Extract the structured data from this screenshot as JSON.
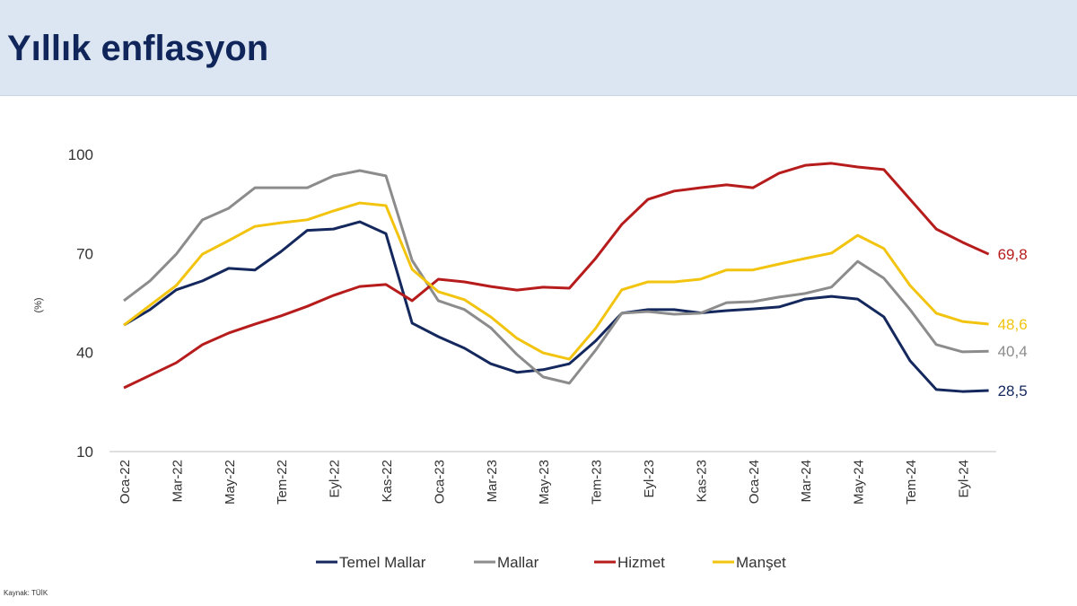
{
  "header": {
    "title": "Yıllık enflasyon"
  },
  "source": "Kaynak: TÜİK",
  "chart_data": {
    "type": "line",
    "title": "",
    "ylabel": "(%)",
    "xlabel": "",
    "ylim": [
      10,
      100
    ],
    "yticks": [
      10,
      40,
      70,
      100
    ],
    "grid": false,
    "legend_position": "bottom",
    "x": [
      "Oca-22",
      "Şub-22",
      "Mar-22",
      "Nis-22",
      "May-22",
      "Haz-22",
      "Tem-22",
      "Ağu-22",
      "Eyl-22",
      "Eki-22",
      "Kas-22",
      "Ara-22",
      "Oca-23",
      "Şub-23",
      "Mar-23",
      "Nis-23",
      "May-23",
      "Haz-23",
      "Tem-23",
      "Ağu-23",
      "Eyl-23",
      "Eki-23",
      "Kas-23",
      "Ara-23",
      "Oca-24",
      "Şub-24",
      "Mar-24",
      "Nis-24",
      "May-24",
      "Haz-24",
      "Tem-24",
      "Ağu-24",
      "Eyl-24",
      "Eki-24"
    ],
    "xtick_labels": [
      "Oca-22",
      "Mar-22",
      "May-22",
      "Tem-22",
      "Eyl-22",
      "Kas-22",
      "Oca-23",
      "Mar-23",
      "May-23",
      "Tem-23",
      "Eyl-23",
      "Kas-23",
      "Oca-24",
      "Mar-24",
      "May-24",
      "Tem-24",
      "Eyl-24"
    ],
    "series": [
      {
        "name": "Temel Mallar",
        "color": "#14285e",
        "end_label": "28,5",
        "values": [
          48.3,
          53,
          59,
          61.7,
          65.5,
          65,
          70.6,
          77,
          77.4,
          79.6,
          76,
          48.9,
          44.8,
          41.3,
          36.6,
          34,
          34.8,
          36.6,
          43.5,
          51.9,
          53,
          53,
          52,
          52.7,
          53.2,
          53.8,
          56.2,
          57,
          56.2,
          50.8,
          37.5,
          28.8,
          28.2,
          28.5
        ]
      },
      {
        "name": "Mallar",
        "color": "#8c8c8c",
        "end_label": "40,4",
        "values": [
          55.7,
          61.7,
          69.8,
          80.2,
          83.7,
          89.9,
          89.9,
          89.9,
          93.5,
          95.1,
          93.5,
          67.9,
          55.7,
          53,
          47.5,
          39.4,
          32.6,
          30.7,
          40.7,
          51.9,
          52.4,
          51.6,
          51.9,
          55.1,
          55.4,
          56.8,
          57.9,
          59.8,
          67.6,
          62.5,
          53,
          42.4,
          40.2,
          40.4
        ]
      },
      {
        "name": "Hizmet",
        "color": "#b71c1c",
        "end_label": "69,8",
        "values": [
          29.3,
          33.1,
          36.9,
          42.4,
          45.9,
          48.6,
          51.1,
          54,
          57.3,
          60,
          60.6,
          55.7,
          62.2,
          61.4,
          60,
          58.9,
          59.8,
          59.5,
          68.5,
          78.8,
          86.4,
          88.9,
          89.9,
          90.8,
          89.9,
          94.3,
          96.7,
          97.3,
          96.2,
          95.4,
          86.4,
          77.4,
          73.4,
          69.8
        ]
      },
      {
        "name": "Manşet",
        "color": "#f2c40f",
        "end_label": "48,6",
        "values": [
          48.3,
          54.3,
          60.3,
          69.8,
          73.9,
          78.2,
          79.3,
          80.2,
          82.9,
          85.3,
          84.5,
          65.2,
          58.4,
          56,
          50.8,
          44.3,
          39.9,
          38,
          47.3,
          59,
          61.4,
          61.4,
          62.2,
          65,
          65,
          66.8,
          68.5,
          70.1,
          75.5,
          71.5,
          60.3,
          51.9,
          49.4,
          48.6
        ]
      }
    ]
  }
}
